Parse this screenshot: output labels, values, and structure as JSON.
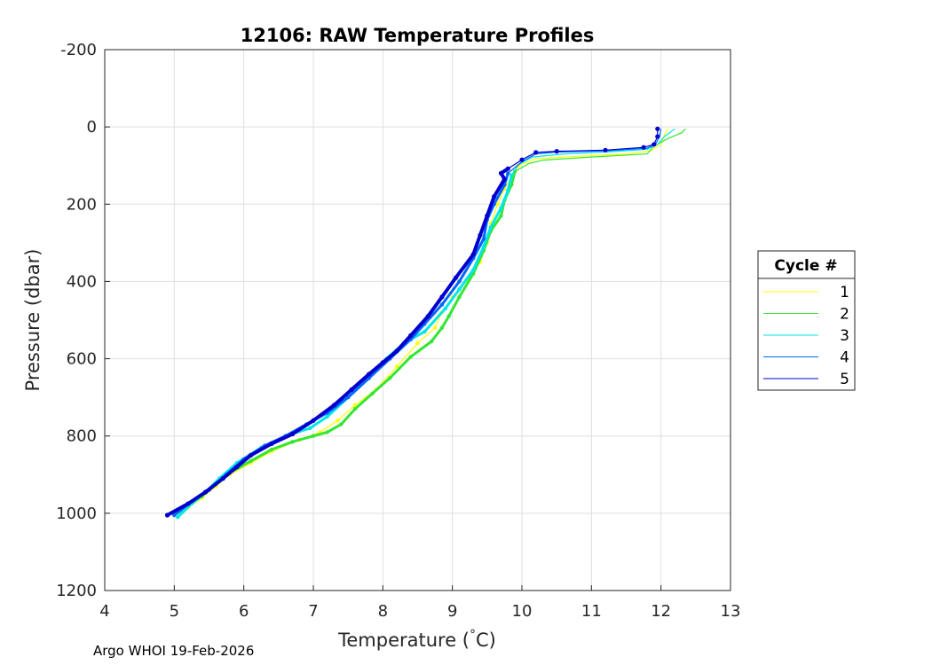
{
  "chart_data": {
    "type": "line",
    "title": "12106: RAW Temperature Profiles",
    "xlabel_main": "Temperature (",
    "xlabel_degree": "°",
    "xlabel_unit": "C)",
    "ylabel": "Pressure (dbar)",
    "xlim": [
      4,
      13
    ],
    "ylim": [
      -200,
      1200
    ],
    "y_reversed": true,
    "grid": true,
    "x_ticks": [
      "4",
      "5",
      "6",
      "7",
      "8",
      "9",
      "10",
      "11",
      "12",
      "13"
    ],
    "y_ticks": [
      "-200",
      "0",
      "200",
      "400",
      "600",
      "800",
      "1000",
      "1200"
    ],
    "legend": {
      "title": "Cycle #",
      "placement": "right-outside"
    },
    "series": [
      {
        "name": "1",
        "color": "#ffff00",
        "points": [
          [
            12.1,
            5
          ],
          [
            12.05,
            20
          ],
          [
            12.0,
            45
          ],
          [
            11.85,
            62
          ],
          [
            11.5,
            70
          ],
          [
            10.8,
            76
          ],
          [
            10.2,
            82
          ],
          [
            9.95,
            100
          ],
          [
            9.85,
            130
          ],
          [
            9.75,
            160
          ],
          [
            9.65,
            200
          ],
          [
            9.55,
            250
          ],
          [
            9.5,
            300
          ],
          [
            9.4,
            350
          ],
          [
            9.2,
            400
          ],
          [
            9.0,
            440
          ],
          [
            8.85,
            480
          ],
          [
            8.75,
            520
          ],
          [
            8.5,
            560
          ],
          [
            8.2,
            620
          ],
          [
            7.9,
            680
          ],
          [
            7.6,
            720
          ],
          [
            7.35,
            760
          ],
          [
            7.1,
            790
          ],
          [
            6.8,
            810
          ],
          [
            6.4,
            840
          ],
          [
            6.1,
            870
          ],
          [
            5.8,
            900
          ],
          [
            5.6,
            930
          ],
          [
            5.4,
            960
          ],
          [
            5.2,
            985
          ],
          [
            5.0,
            1005
          ]
        ]
      },
      {
        "name": "2",
        "color": "#33e633",
        "points": [
          [
            12.35,
            5
          ],
          [
            12.3,
            15
          ],
          [
            12.1,
            30
          ],
          [
            11.9,
            50
          ],
          [
            11.8,
            70
          ],
          [
            11.0,
            78
          ],
          [
            10.3,
            86
          ],
          [
            10.1,
            95
          ],
          [
            9.9,
            115
          ],
          [
            9.85,
            150
          ],
          [
            9.75,
            190
          ],
          [
            9.7,
            230
          ],
          [
            9.55,
            270
          ],
          [
            9.45,
            320
          ],
          [
            9.3,
            380
          ],
          [
            9.1,
            440
          ],
          [
            8.95,
            490
          ],
          [
            8.85,
            520
          ],
          [
            8.7,
            555
          ],
          [
            8.4,
            595
          ],
          [
            8.1,
            650
          ],
          [
            7.85,
            690
          ],
          [
            7.6,
            730
          ],
          [
            7.4,
            770
          ],
          [
            7.2,
            790
          ],
          [
            7.0,
            800
          ],
          [
            6.7,
            815
          ],
          [
            6.4,
            835
          ],
          [
            6.1,
            865
          ],
          [
            5.8,
            895
          ],
          [
            5.6,
            925
          ],
          [
            5.4,
            955
          ],
          [
            5.2,
            982
          ],
          [
            5.0,
            1005
          ]
        ]
      },
      {
        "name": "3",
        "color": "#00e6e6",
        "points": [
          [
            12.2,
            5
          ],
          [
            12.05,
            25
          ],
          [
            11.95,
            45
          ],
          [
            11.8,
            58
          ],
          [
            11.3,
            64
          ],
          [
            10.6,
            70
          ],
          [
            10.15,
            78
          ],
          [
            9.95,
            98
          ],
          [
            9.85,
            125
          ],
          [
            9.8,
            165
          ],
          [
            9.7,
            210
          ],
          [
            9.55,
            260
          ],
          [
            9.45,
            310
          ],
          [
            9.3,
            370
          ],
          [
            9.1,
            420
          ],
          [
            8.9,
            470
          ],
          [
            8.6,
            530
          ],
          [
            8.3,
            560
          ],
          [
            8.05,
            600
          ],
          [
            7.8,
            650
          ],
          [
            7.5,
            700
          ],
          [
            7.2,
            750
          ],
          [
            6.95,
            780
          ],
          [
            6.6,
            800
          ],
          [
            6.25,
            830
          ],
          [
            5.9,
            870
          ],
          [
            5.65,
            910
          ],
          [
            5.45,
            945
          ],
          [
            5.25,
            975
          ],
          [
            5.05,
            1010
          ]
        ]
      },
      {
        "name": "4",
        "color": "#0066ff",
        "points": [
          [
            12.0,
            5
          ],
          [
            11.98,
            25
          ],
          [
            11.92,
            45
          ],
          [
            11.8,
            55
          ],
          [
            11.2,
            62
          ],
          [
            10.5,
            65
          ],
          [
            10.2,
            70
          ],
          [
            10.0,
            90
          ],
          [
            9.8,
            120
          ],
          [
            9.75,
            150
          ],
          [
            9.6,
            200
          ],
          [
            9.5,
            240
          ],
          [
            9.45,
            290
          ],
          [
            9.3,
            340
          ],
          [
            9.1,
            400
          ],
          [
            8.85,
            460
          ],
          [
            8.6,
            510
          ],
          [
            8.4,
            550
          ],
          [
            8.1,
            600
          ],
          [
            7.8,
            650
          ],
          [
            7.5,
            700
          ],
          [
            7.2,
            740
          ],
          [
            6.9,
            770
          ],
          [
            6.6,
            800
          ],
          [
            6.3,
            825
          ],
          [
            6.0,
            860
          ],
          [
            5.75,
            900
          ],
          [
            5.5,
            940
          ],
          [
            5.25,
            970
          ],
          [
            5.0,
            1005
          ]
        ]
      },
      {
        "name": "5",
        "color": "#0000cc",
        "points": [
          [
            11.95,
            5
          ],
          [
            11.95,
            25
          ],
          [
            11.9,
            45
          ],
          [
            11.75,
            53
          ],
          [
            11.2,
            60
          ],
          [
            10.5,
            63
          ],
          [
            10.2,
            66
          ],
          [
            10.0,
            85
          ],
          [
            9.8,
            108
          ],
          [
            9.7,
            120
          ],
          [
            9.75,
            135
          ],
          [
            9.6,
            180
          ],
          [
            9.5,
            230
          ],
          [
            9.4,
            280
          ],
          [
            9.3,
            330
          ],
          [
            9.05,
            390
          ],
          [
            8.85,
            440
          ],
          [
            8.65,
            490
          ],
          [
            8.4,
            540
          ],
          [
            8.2,
            580
          ],
          [
            8.0,
            610
          ],
          [
            7.8,
            640
          ],
          [
            7.55,
            680
          ],
          [
            7.3,
            720
          ],
          [
            7.0,
            760
          ],
          [
            6.7,
            795
          ],
          [
            6.4,
            820
          ],
          [
            6.1,
            850
          ],
          [
            5.9,
            880
          ],
          [
            5.7,
            910
          ],
          [
            5.45,
            945
          ],
          [
            5.2,
            975
          ],
          [
            4.9,
            1005
          ]
        ]
      }
    ]
  },
  "footer": "Argo WHOI 19-Feb-2026"
}
